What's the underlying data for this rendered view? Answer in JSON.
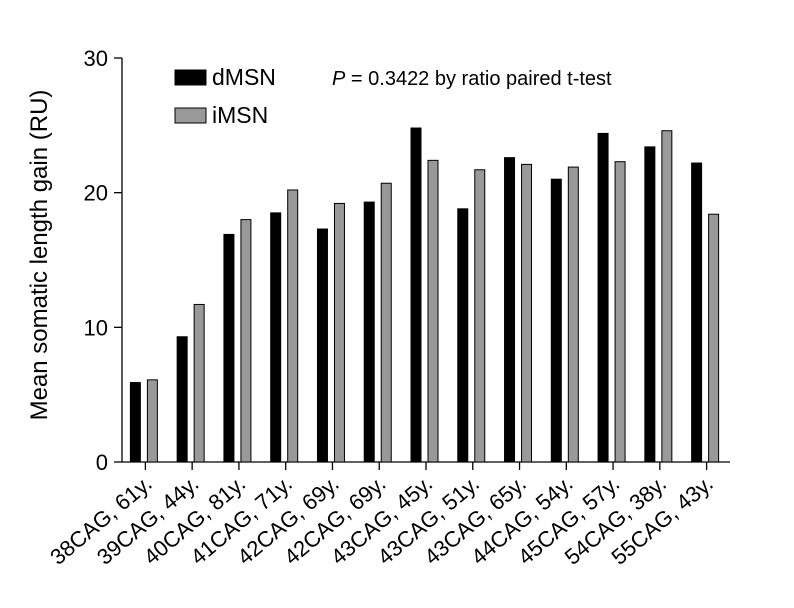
{
  "chart_data": {
    "type": "bar",
    "ylabel": "Mean somatic length gain (RU)",
    "xlabel": "",
    "ylim": [
      0,
      30
    ],
    "yticks": [
      0,
      10,
      20,
      30
    ],
    "categories": [
      "38CAG, 61y.",
      "39CAG, 44y.",
      "40CAG, 81y.",
      "41CAG, 71y.",
      "42CAG, 69y.",
      "42CAG, 69y.",
      "43CAG, 45y.",
      "43CAG, 51y.",
      "43CAG, 65y.",
      "44CAG, 54y.",
      "45CAG, 57y.",
      "54CAG, 38y.",
      "55CAG, 43y."
    ],
    "series": [
      {
        "name": "dMSN",
        "color": "#000000",
        "values": [
          5.9,
          9.3,
          16.9,
          18.5,
          17.3,
          19.3,
          24.8,
          18.8,
          22.6,
          21.0,
          24.4,
          23.4,
          22.2
        ]
      },
      {
        "name": "iMSN",
        "color": "#999999",
        "values": [
          6.1,
          11.7,
          18.0,
          20.2,
          19.2,
          20.7,
          22.4,
          21.7,
          22.1,
          21.9,
          22.3,
          24.6,
          18.4
        ]
      }
    ],
    "annotation": {
      "italic": "P",
      "rest": " = 0.3422 by ratio paired t-test"
    },
    "legend": "top-left"
  }
}
